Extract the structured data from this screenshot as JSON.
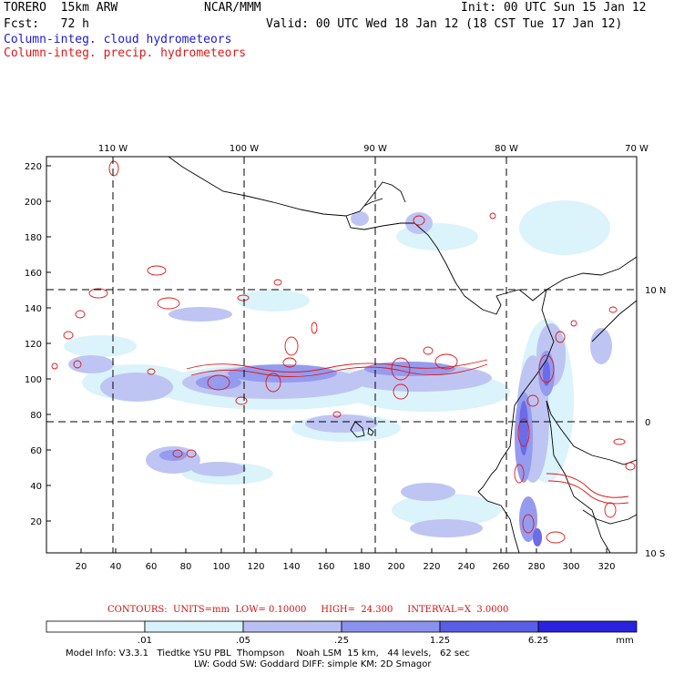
{
  "header": {
    "model": "TORERO  15km ARW",
    "org": "NCAR/MMM",
    "init": "Init: 00 UTC Sun 15 Jan 12",
    "fcst": "Fcst:   72 h",
    "valid": "Valid: 00 UTC Wed 18 Jan 12 (18 CST Tue 17 Jan 12)",
    "field1": "Column-integ. cloud hydrometeors",
    "field2": "Column-integ. precip. hydrometeors"
  },
  "axes": {
    "top_lon": [
      "110 W",
      "100 W",
      "90 W",
      "80 W",
      "70 W"
    ],
    "right_lat": [
      "10 N",
      "0",
      "10 S"
    ],
    "left_y": [
      "220",
      "200",
      "180",
      "160",
      "140",
      "120",
      "100",
      "80",
      "60",
      "40",
      "20"
    ],
    "bottom_x": [
      "20",
      "40",
      "60",
      "80",
      "100",
      "120",
      "140",
      "160",
      "180",
      "200",
      "220",
      "240",
      "260",
      "280",
      "300",
      "320"
    ]
  },
  "contours": {
    "line": "CONTOURS:  UNITS=mm  LOW= 0.10000     HIGH=  24.300     INTERVAL=X  3.0000"
  },
  "colorbar": {
    "labels": [
      ".01",
      ".05",
      ".25",
      "1.25",
      "6.25",
      "mm"
    ],
    "colors": [
      "#ffffff",
      "#d8f2fb",
      "#b8bff2",
      "#8a91ee",
      "#5a5de6",
      "#2a22e0"
    ]
  },
  "model_info": {
    "line1": "Model Info: V3.3.1   Tiedtke YSU PBL  Thompson    Noah LSM  15 km,   44 levels,   62 sec",
    "line2": "LW: Godd SW: Goddard DIFF: simple KM: 2D Smagor"
  },
  "colors": {
    "cloud_label": "#1a1ad6",
    "precip_label": "#e01818",
    "contour": "#e01818"
  }
}
